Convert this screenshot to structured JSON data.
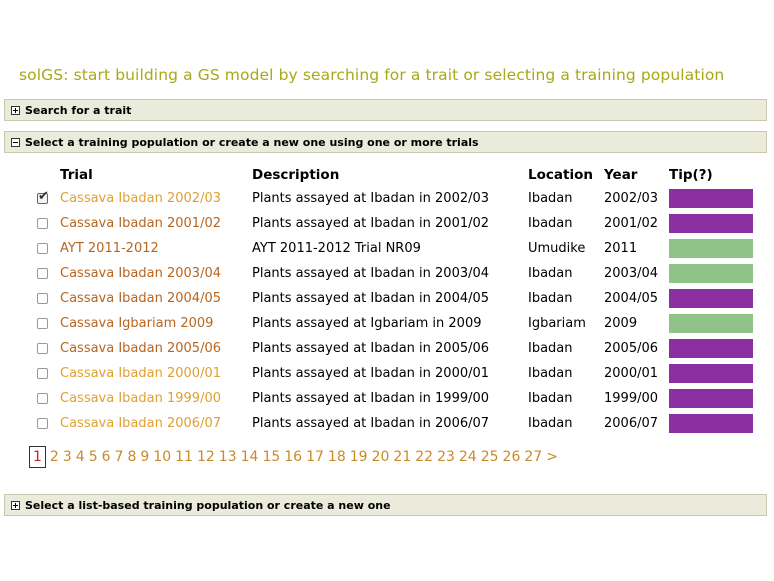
{
  "page_title": "solGS: start building a GS model by searching for a trait or selecting a training population",
  "sections": {
    "search_trait": "Search for a trait",
    "select_population": "Select a training population or create a new one using one or more trials",
    "list_based": "Select a list-based training population or create a new one"
  },
  "table": {
    "headers": {
      "trial": "Trial",
      "description": "Description",
      "location": "Location",
      "year": "Year",
      "tip": "Tip(?)"
    },
    "rows": [
      {
        "checked": true,
        "trial": "Cassava Ibadan 2002/03",
        "trial_color": "#e0a030",
        "description": "Plants assayed at Ibadan in 2002/03",
        "location": "Ibadan",
        "year": "2002/03",
        "tip_color": "#8b2fa0"
      },
      {
        "checked": false,
        "trial": "Cassava Ibadan 2001/02",
        "trial_color": "#b8651e",
        "description": "Plants assayed at Ibadan in 2001/02",
        "location": "Ibadan",
        "year": "2001/02",
        "tip_color": "#8b2fa0"
      },
      {
        "checked": false,
        "trial": "AYT 2011-2012",
        "trial_color": "#b8651e",
        "description": "AYT 2011-2012 Trial NR09",
        "location": "Umudike",
        "year": "2011",
        "tip_color": "#8fc388"
      },
      {
        "checked": false,
        "trial": "Cassava Ibadan 2003/04",
        "trial_color": "#b8651e",
        "description": "Plants assayed at Ibadan in 2003/04",
        "location": "Ibadan",
        "year": "2003/04",
        "tip_color": "#8fc388"
      },
      {
        "checked": false,
        "trial": "Cassava Ibadan 2004/05",
        "trial_color": "#b8651e",
        "description": "Plants assayed at Ibadan in 2004/05",
        "location": "Ibadan",
        "year": "2004/05",
        "tip_color": "#8b2fa0"
      },
      {
        "checked": false,
        "trial": "Cassava Igbariam 2009",
        "trial_color": "#b8651e",
        "description": "Plants assayed at Igbariam in 2009",
        "location": "Igbariam",
        "year": "2009",
        "tip_color": "#8fc388"
      },
      {
        "checked": false,
        "trial": "Cassava Ibadan 2005/06",
        "trial_color": "#b8651e",
        "description": "Plants assayed at Ibadan in 2005/06",
        "location": "Ibadan",
        "year": "2005/06",
        "tip_color": "#8b2fa0"
      },
      {
        "checked": false,
        "trial": "Cassava Ibadan 2000/01",
        "trial_color": "#e0a030",
        "description": "Plants assayed at Ibadan in 2000/01",
        "location": "Ibadan",
        "year": "2000/01",
        "tip_color": "#8b2fa0"
      },
      {
        "checked": false,
        "trial": "Cassava Ibadan 1999/00",
        "trial_color": "#e0a030",
        "description": "Plants assayed at Ibadan in 1999/00",
        "location": "Ibadan",
        "year": "1999/00",
        "tip_color": "#8b2fa0"
      },
      {
        "checked": false,
        "trial": "Cassava Ibadan 2006/07",
        "trial_color": "#e0a030",
        "description": "Plants assayed at Ibadan in 2006/07",
        "location": "Ibadan",
        "year": "2006/07",
        "tip_color": "#8b2fa0"
      }
    ]
  },
  "pagination": {
    "current": "1",
    "pages": [
      "2",
      "3",
      "4",
      "5",
      "6",
      "7",
      "8",
      "9",
      "10",
      "11",
      "12",
      "13",
      "14",
      "15",
      "16",
      "17",
      "18",
      "19",
      "20",
      "21",
      "22",
      "23",
      "24",
      "25",
      "26",
      "27"
    ],
    "next": ">"
  },
  "icons": {
    "expand": "plus-box-icon",
    "collapse": "minus-box-icon",
    "checkbox": "checkbox-icon"
  }
}
